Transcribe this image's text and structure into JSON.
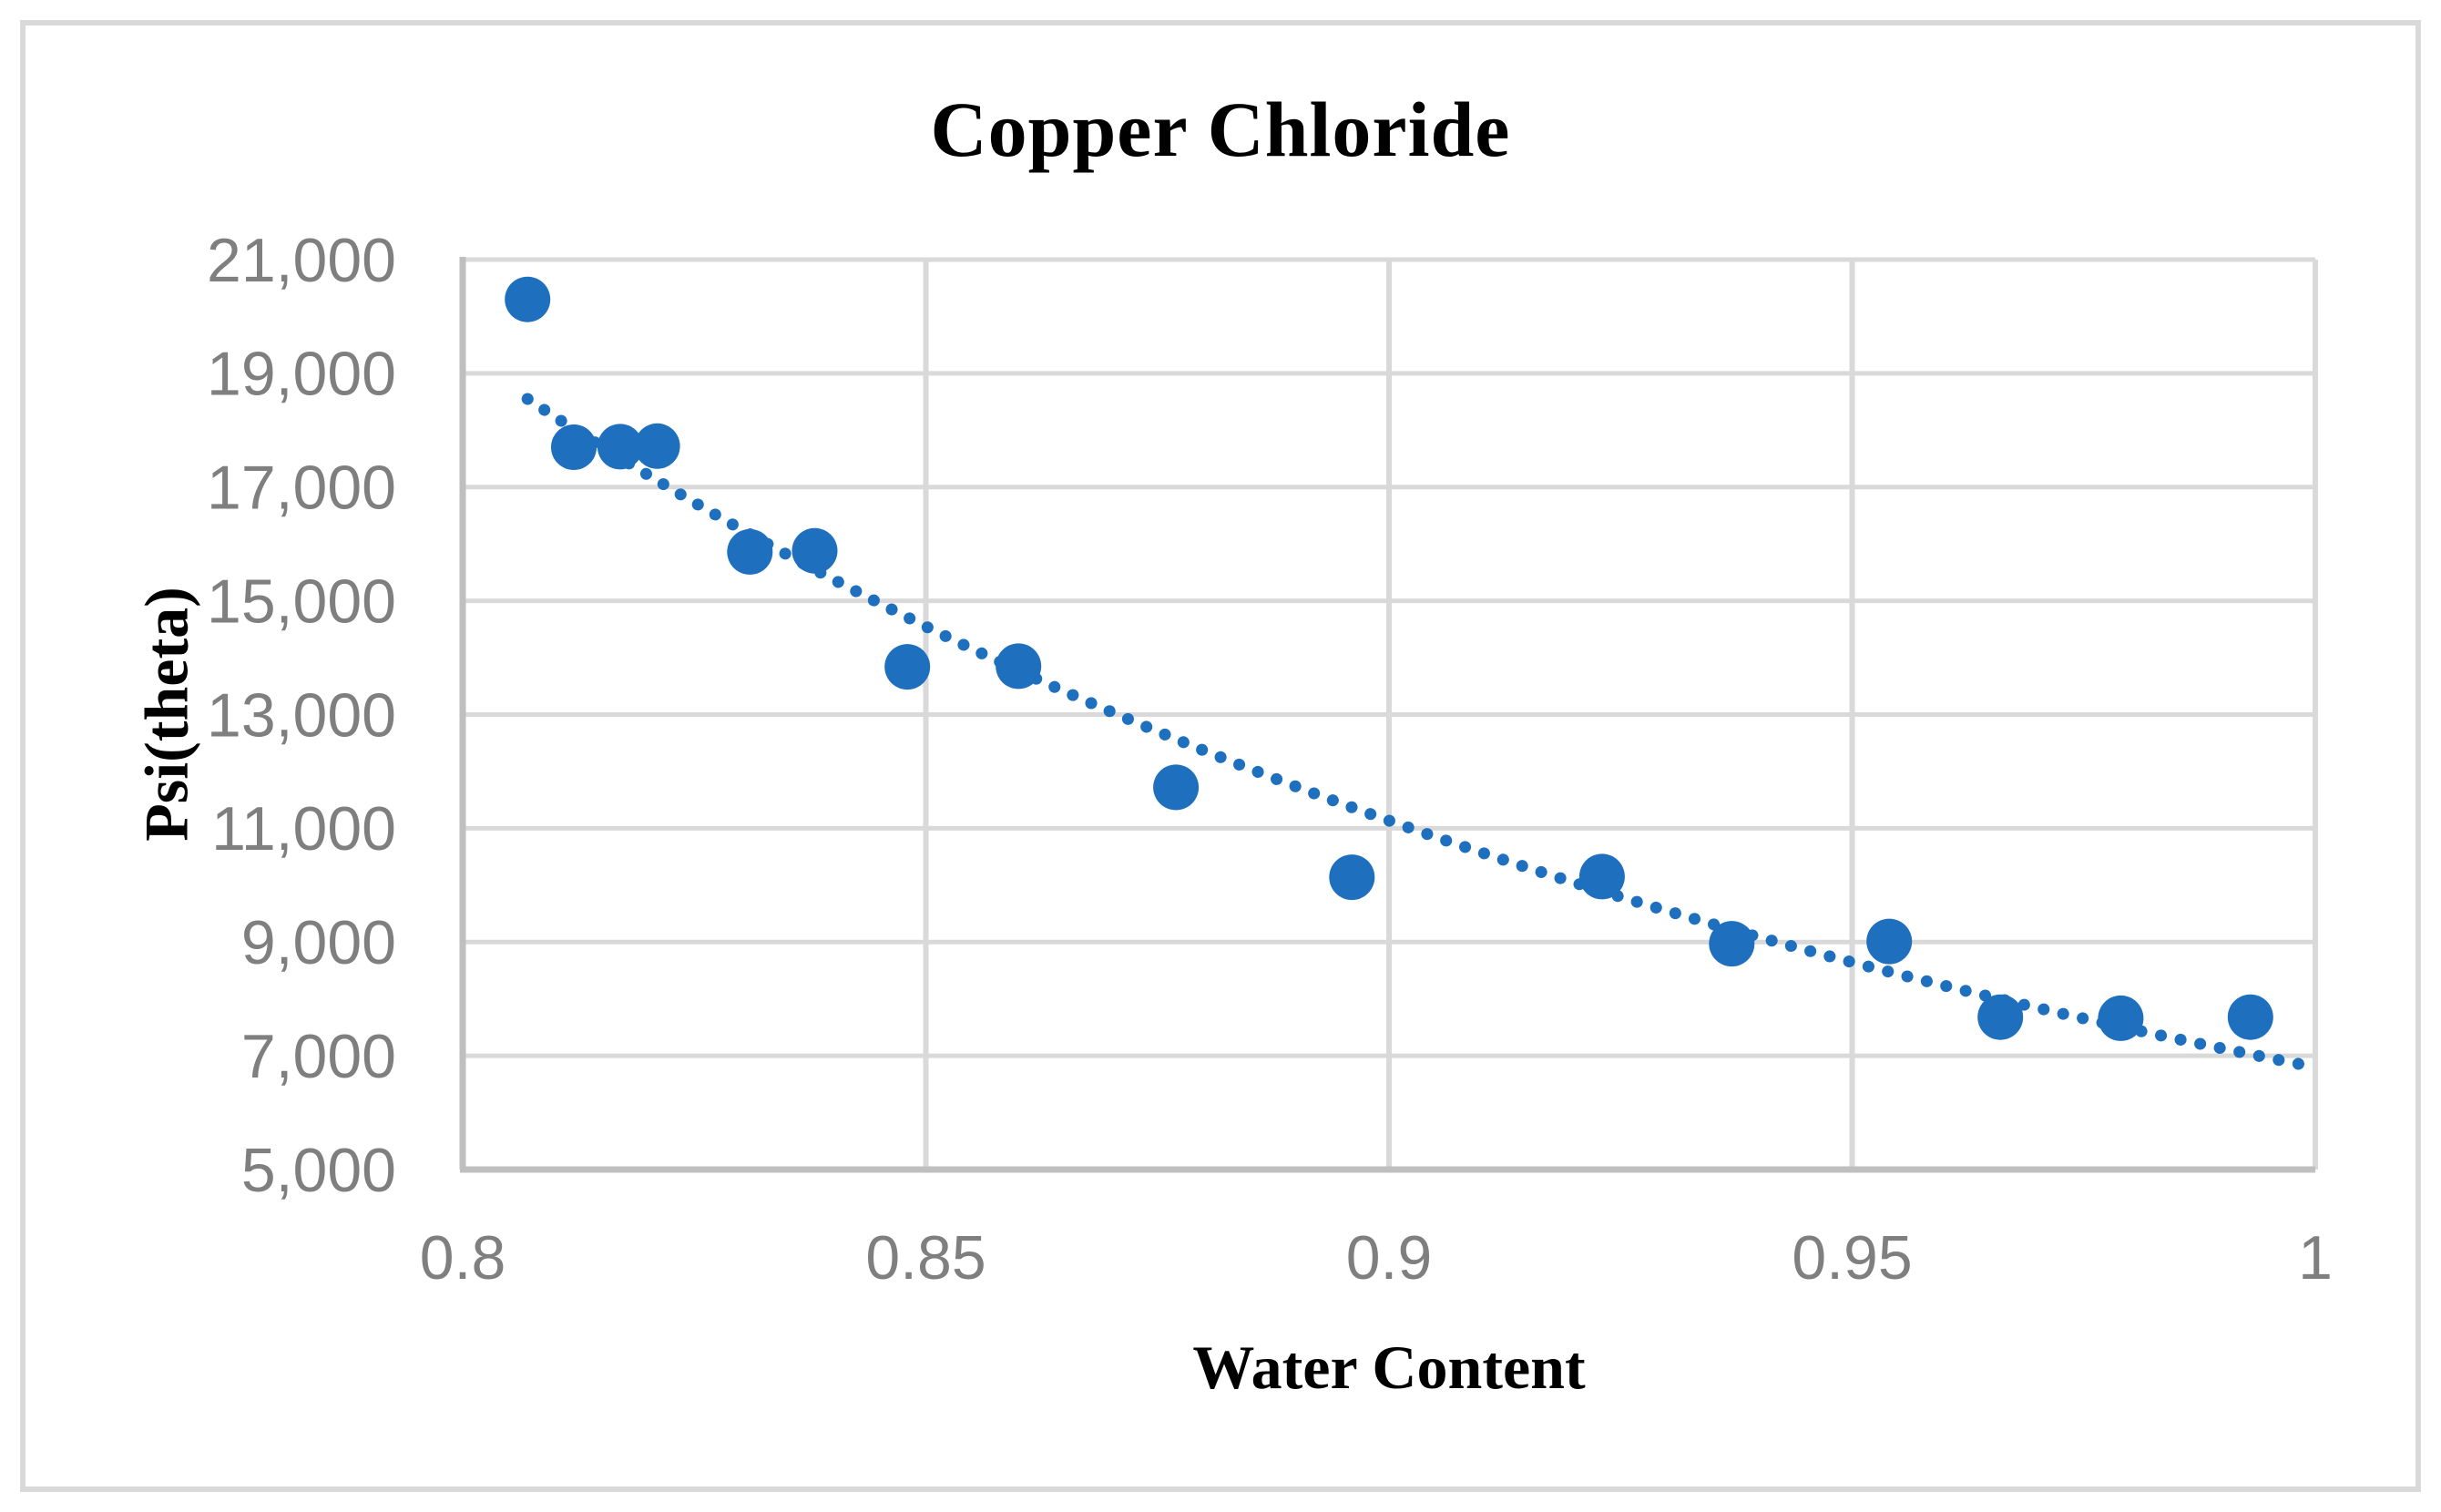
{
  "style": {
    "background": "#FFFFFF",
    "accent_blue": "#1E6FBE",
    "gridline_color": "#D9D9D9",
    "axis_line_color": "#BFBFBF",
    "tick_text_color": "#7F7F7F",
    "title_text_color": "#000000",
    "figure_border_color": "#D9D9D9"
  },
  "chart_data": {
    "type": "scatter",
    "title": "Copper Chloride",
    "xlabel": "Water Content",
    "ylabel": "Psi(theta)",
    "xlim": [
      0.8,
      1.0
    ],
    "ylim": [
      5000,
      21000
    ],
    "grid": true,
    "legend": "none",
    "x_ticks": [
      0.8,
      0.85,
      0.9,
      0.95,
      1
    ],
    "x_tick_labels": [
      "0.8",
      "0.85",
      "0.9",
      "0.95",
      "1"
    ],
    "x_gridlines": [
      0.85,
      0.9,
      0.95,
      1.0
    ],
    "y_ticks": [
      5000,
      7000,
      9000,
      11000,
      13000,
      15000,
      17000,
      19000,
      21000
    ],
    "y_tick_labels": [
      "5,000",
      "7,000",
      "9,000",
      "11,000",
      "13,000",
      "15,000",
      "17,000",
      "19,000",
      "21,000"
    ],
    "series": [
      {
        "name": "Psi(theta) vs Water Content",
        "marker": "circle",
        "color": "#1E6FBE",
        "points": [
          [
            0.807,
            20300
          ],
          [
            0.812,
            17700
          ],
          [
            0.817,
            17710
          ],
          [
            0.821,
            17720
          ],
          [
            0.831,
            15860
          ],
          [
            0.838,
            15880
          ],
          [
            0.848,
            13840
          ],
          [
            0.86,
            13850
          ],
          [
            0.877,
            11720
          ],
          [
            0.896,
            10140
          ],
          [
            0.923,
            10150
          ],
          [
            0.937,
            8970
          ],
          [
            0.954,
            9010
          ],
          [
            0.966,
            7680
          ],
          [
            0.979,
            7660
          ],
          [
            0.993,
            7680
          ]
        ]
      }
    ],
    "trendline": {
      "style": "dotted",
      "color": "#1E6FBE",
      "type": "power",
      "equation": "y = 6800*x^(-4.68)",
      "a": 6800,
      "b": -4.68,
      "x_range": [
        0.807,
        0.9995
      ]
    }
  }
}
